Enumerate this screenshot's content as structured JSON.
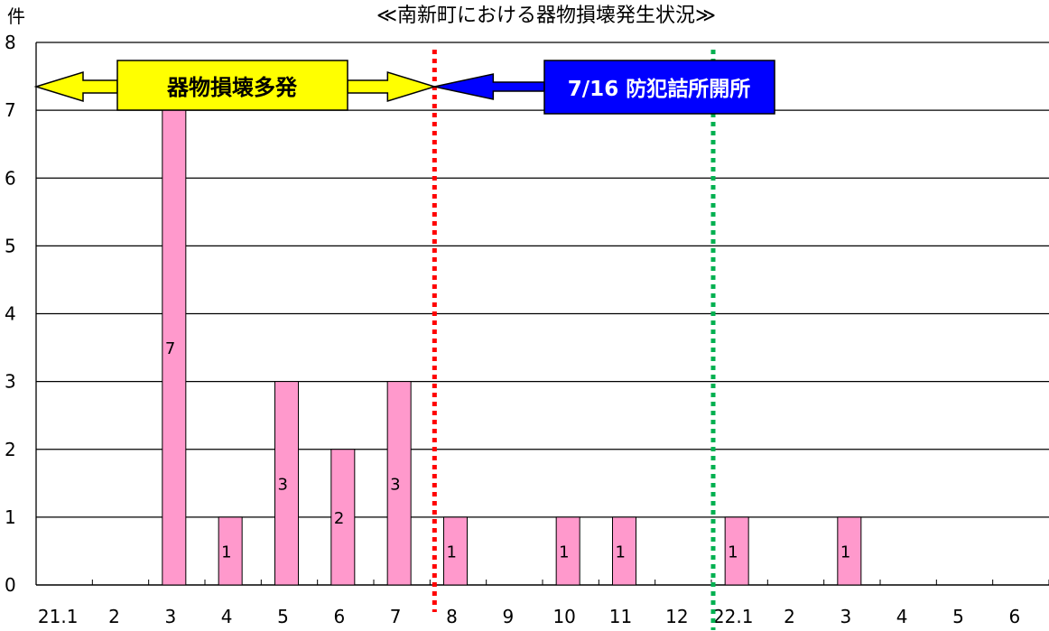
{
  "chart_data": {
    "type": "bar",
    "title": "≪南新町における器物損壊発生状況≫",
    "ylabel": "件",
    "xlabel": "",
    "ylim": [
      0,
      8
    ],
    "yticks": [
      "0",
      "1",
      "2",
      "3",
      "4",
      "5",
      "6",
      "7",
      "8"
    ],
    "grid": true,
    "categories": [
      "21.1",
      "2",
      "3",
      "4",
      "5",
      "6",
      "7",
      "8",
      "9",
      "10",
      "11",
      "12",
      "22.1",
      "2",
      "3",
      "4",
      "5",
      "6"
    ],
    "values": [
      0,
      0,
      7,
      1,
      3,
      2,
      3,
      1,
      0,
      1,
      1,
      0,
      1,
      0,
      1,
      0,
      0,
      0
    ],
    "bar_color": "#ff99cc",
    "annotations": {
      "yellow_arrow_label": "器物損壊多発",
      "blue_arrow_label": "7/16 防犯詰所開所",
      "yellow_color": "#ffff00",
      "blue_color": "#0000ff",
      "red_line_color": "#ff0000",
      "green_line_color": "#00b050"
    }
  }
}
